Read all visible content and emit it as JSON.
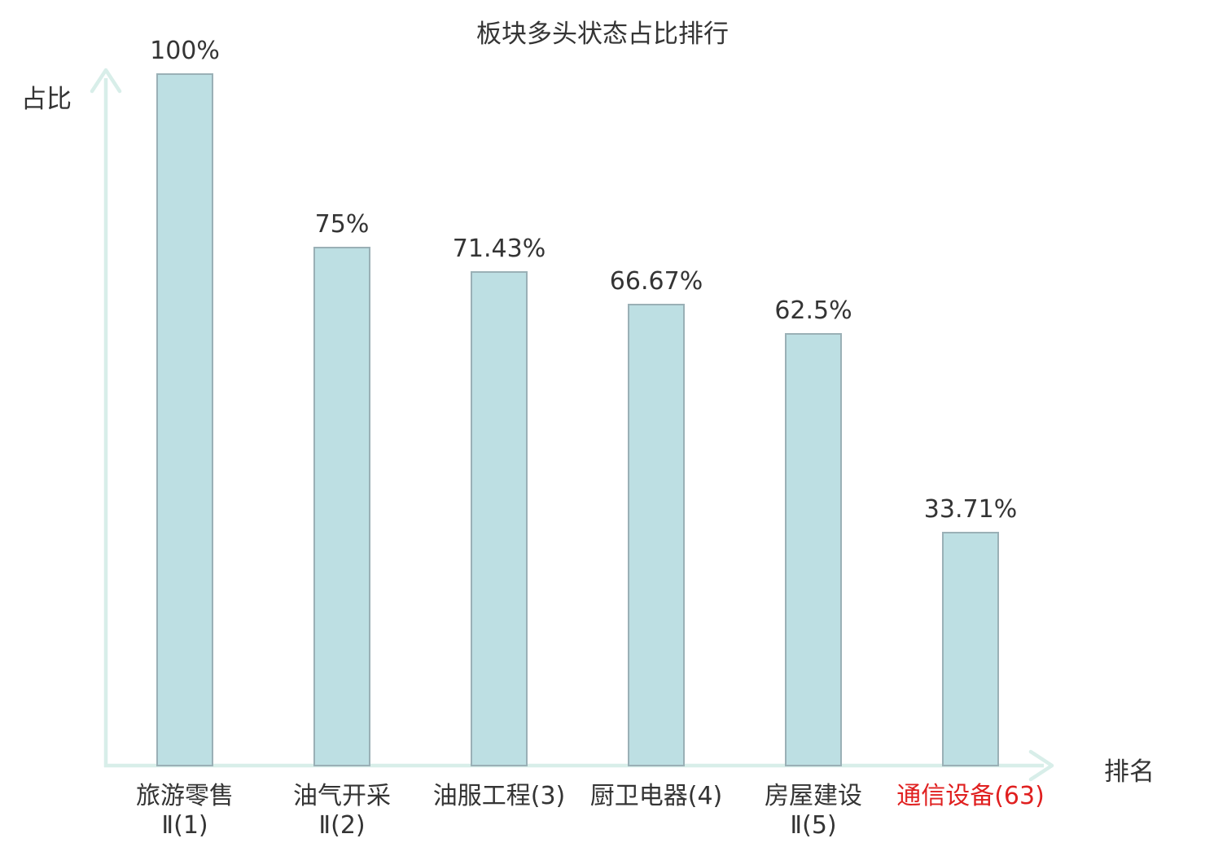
{
  "chart_data": {
    "type": "bar",
    "title": "板块多头状态占比排行",
    "xlabel": "排名",
    "ylabel": "占比",
    "ylim": [
      0,
      100
    ],
    "grid": false,
    "legend": null,
    "categories": [
      "旅游零售\nⅡ(1)",
      "油气开采\nⅡ(2)",
      "油服工程(3)",
      "厨卫电器(4)",
      "房屋建设\nⅡ(5)",
      "通信设备(63)"
    ],
    "values": [
      100,
      75,
      71.43,
      66.67,
      62.5,
      33.71
    ],
    "value_labels": [
      "100%",
      "75%",
      "71.43%",
      "66.67%",
      "62.5%",
      "33.71%"
    ],
    "highlighted_category_index": 5,
    "colors": {
      "bar_fill": "#bddfe3",
      "bar_border": "#9ab0b6",
      "axis": "#d8eee9",
      "text": "#343434",
      "highlight_text": "#e02020"
    }
  }
}
